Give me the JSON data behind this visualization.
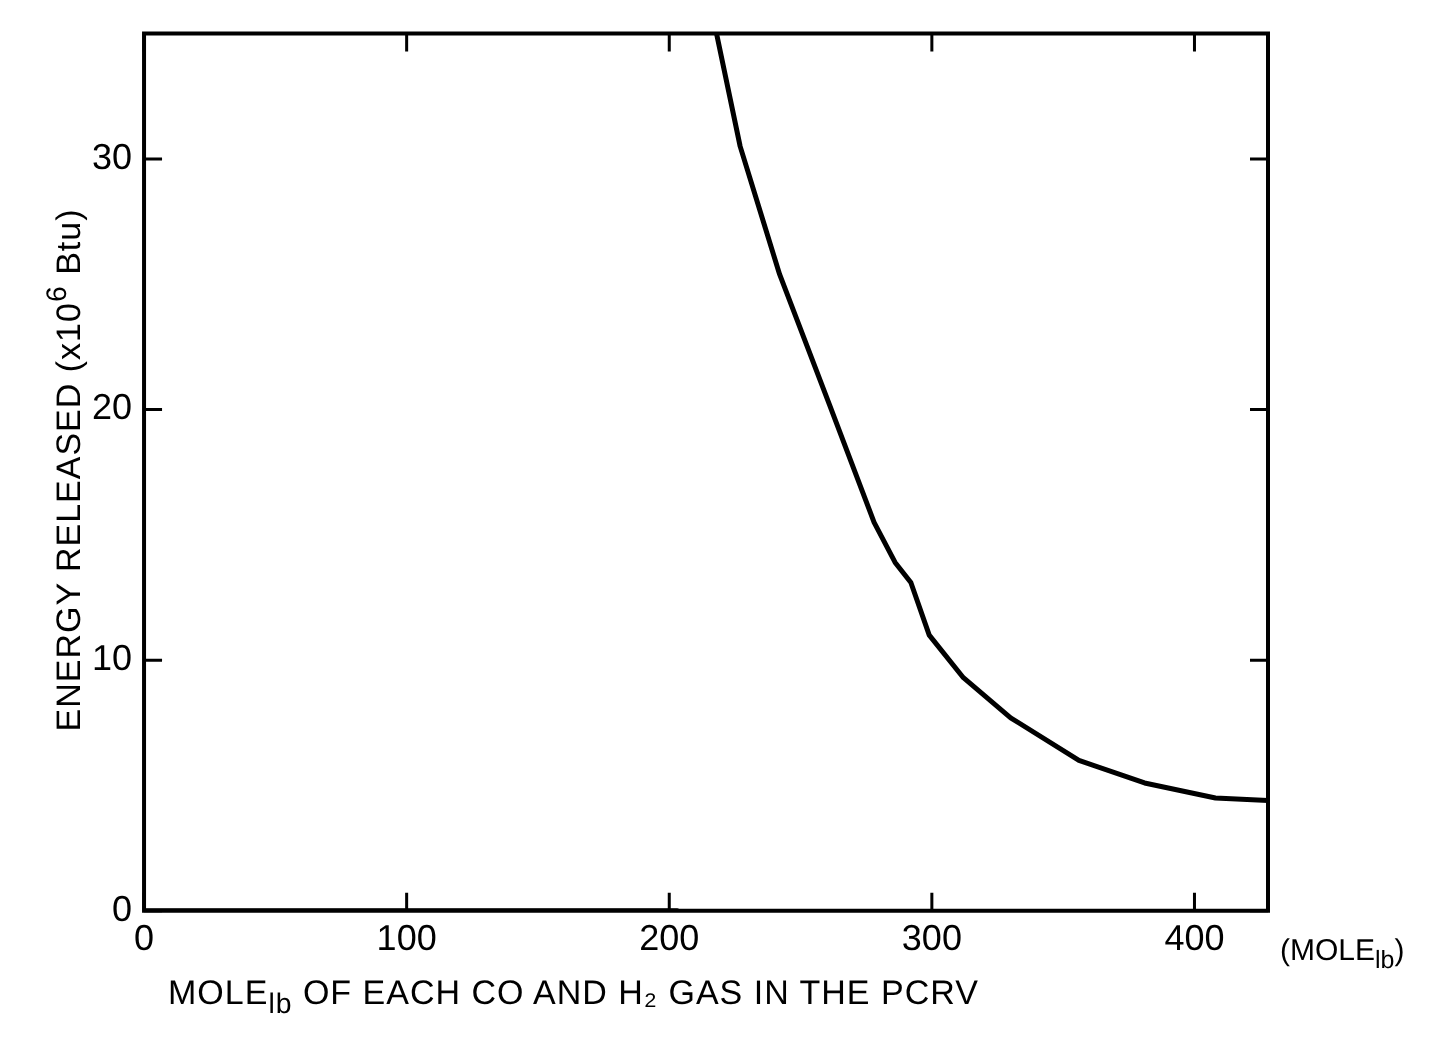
{
  "chart_data": {
    "type": "line",
    "xlabel": "MOLE$_{lb}$ OF EACH CO AND H₂ GAS IN THE PCRV",
    "ylabel": "ENERGY RELEASED (x10$^{6}$ Btu)",
    "annotations": [
      "(MOLE$_{lb}$)"
    ],
    "series": [
      {
        "color": "#000000",
        "x": [
          218,
          227,
          242,
          261,
          278,
          286,
          292,
          299,
          312,
          330,
          356,
          381,
          408,
          428
        ],
        "values": [
          35,
          30.5,
          25.4,
          20.2,
          15.5,
          13.9,
          13.1,
          11.0,
          9.3,
          7.7,
          6.0,
          5.1,
          4.5,
          4.4
        ]
      },
      {
        "color": "#000000",
        "x": [
          0,
          203
        ],
        "values": [
          0,
          0
        ]
      }
    ],
    "xlim": [
      0,
      428
    ],
    "ylim": [
      0,
      35
    ],
    "xticks": [
      0,
      100,
      200,
      300,
      400
    ],
    "yticks": [
      0,
      10,
      20,
      30
    ],
    "grid": false,
    "legend": false,
    "marker": "none",
    "line_style": "solid"
  }
}
